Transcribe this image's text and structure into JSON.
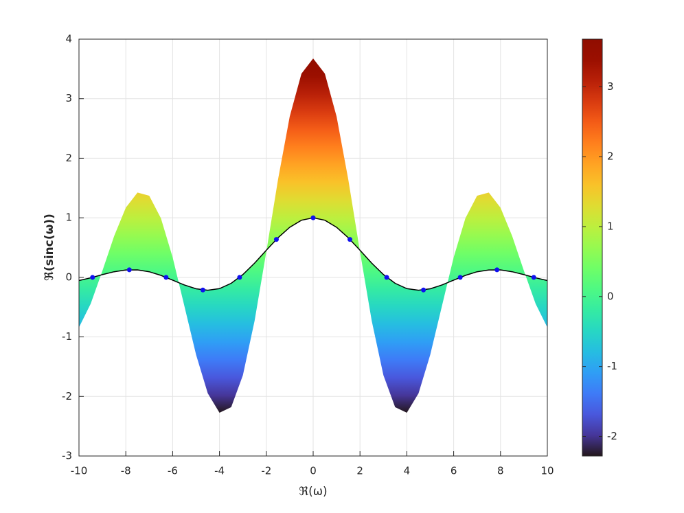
{
  "chart_data": {
    "type": "surface_side",
    "xlabel": "ℜ(ω)",
    "ylabel": "ℜ(sinc(ω))",
    "xlim": [
      -10,
      10
    ],
    "ylim": [
      -3,
      4
    ],
    "xticks": [
      -10,
      -8,
      -6,
      -4,
      -2,
      0,
      2,
      4,
      6,
      8,
      10
    ],
    "yticks": [
      -3,
      -2,
      -1,
      0,
      1,
      2,
      3,
      4
    ],
    "grid": true,
    "x": [
      -10,
      -9.5,
      -9,
      -8.5,
      -8,
      -7.5,
      -7,
      -6.5,
      -6,
      -5.5,
      -5,
      -4.5,
      -4,
      -3.5,
      -3,
      -2.5,
      -2,
      -1.5,
      -1,
      -0.5,
      0,
      0.5,
      1,
      1.5,
      2,
      2.5,
      3,
      3.5,
      4,
      4.5,
      5,
      5.5,
      6,
      6.5,
      7,
      7.5,
      8,
      8.5,
      9,
      9.5,
      10
    ],
    "series": [
      {
        "values": [
          -0.84,
          -0.444,
          0.109,
          0.692,
          1.171,
          1.424,
          1.37,
          0.991,
          0.336,
          -0.48,
          -1.299,
          -1.947,
          -2.273,
          -2.18,
          -1.643,
          -0.728,
          0.431,
          1.643,
          2.701,
          3.421,
          3.676,
          3.421,
          2.701,
          1.643,
          0.431,
          -0.728,
          -1.643,
          -2.18,
          -2.273,
          -1.947,
          -1.299,
          -0.48,
          0.336,
          0.991,
          1.37,
          1.424,
          1.171,
          0.692,
          0.109,
          -0.444,
          -0.84
        ]
      },
      {
        "values": [
          -0.054,
          -0.008,
          0.046,
          0.094,
          0.124,
          0.125,
          0.094,
          0.033,
          -0.047,
          -0.128,
          -0.192,
          -0.217,
          -0.189,
          -0.1,
          0.047,
          0.239,
          0.455,
          0.665,
          0.841,
          0.959,
          1,
          0.959,
          0.841,
          0.665,
          0.455,
          0.239,
          0.047,
          -0.1,
          -0.189,
          -0.217,
          -0.192,
          -0.128,
          -0.047,
          0.033,
          0.094,
          0.124,
          0.125,
          0.094,
          0.046,
          -0.008,
          -0.054
        ],
        "color": "#000000"
      }
    ],
    "points": {
      "x": [
        -9.42,
        -7.85,
        -6.28,
        -4.71,
        -3.14,
        -1.57,
        0,
        1.57,
        3.14,
        4.71,
        6.28,
        7.85,
        9.42
      ],
      "values": [
        0,
        0.127,
        0,
        -0.212,
        0,
        0.637,
        1,
        0.637,
        0,
        -0.212,
        0,
        0.127,
        0
      ],
      "color": "#1010ee"
    },
    "colorbar": {
      "clim": [
        -2.28,
        3.68
      ],
      "ticks": [
        -2,
        -1,
        0,
        1,
        2,
        3
      ],
      "colormap": "turbo"
    }
  }
}
